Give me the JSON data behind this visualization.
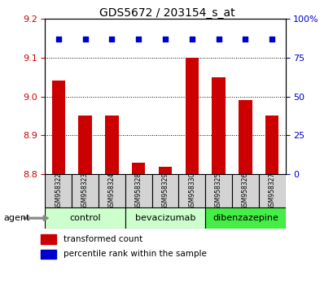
{
  "title": "GDS5672 / 203154_s_at",
  "samples": [
    "GSM958322",
    "GSM958323",
    "GSM958324",
    "GSM958328",
    "GSM958329",
    "GSM958330",
    "GSM958325",
    "GSM958326",
    "GSM958327"
  ],
  "bar_values": [
    9.04,
    8.95,
    8.95,
    8.83,
    8.82,
    9.1,
    9.05,
    8.99,
    8.95
  ],
  "percentile_values": [
    87,
    87,
    87,
    87,
    87,
    87,
    87,
    87,
    87
  ],
  "ylim": [
    8.8,
    9.2
  ],
  "yticks": [
    8.8,
    8.9,
    9.0,
    9.1,
    9.2
  ],
  "right_yticks": [
    0,
    25,
    50,
    75,
    100
  ],
  "right_ylabels": [
    "0",
    "25",
    "50",
    "75",
    "100%"
  ],
  "bar_color": "#cc0000",
  "dot_color": "#0000cc",
  "group_starts": [
    0,
    3,
    6
  ],
  "group_ends": [
    3,
    6,
    9
  ],
  "group_labels": [
    "control",
    "bevacizumab",
    "dibenzazepine"
  ],
  "group_colors": [
    "#ccffcc",
    "#ccffcc",
    "#44ee44"
  ],
  "legend_bar_label": "transformed count",
  "legend_dot_label": "percentile rank within the sample",
  "tick_label_color_left": "#cc0000",
  "tick_label_color_right": "#0000cc"
}
